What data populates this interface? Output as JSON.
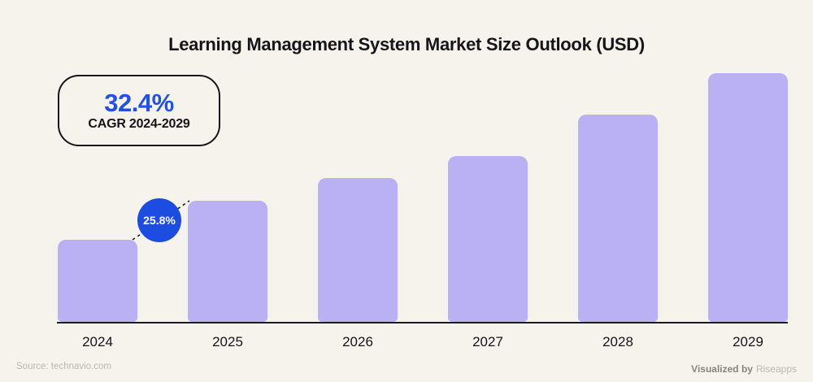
{
  "title": "Learning Management System Market Size Outlook (USD)",
  "cagr_box": {
    "value": "32.4%",
    "label": "CAGR 2024-2029"
  },
  "growth_badge": {
    "value": "25.8%"
  },
  "footer": {
    "source": "Source: technavio.com",
    "visualized_by": "Visualized by",
    "brand": "Riseapps"
  },
  "colors": {
    "background": "#f5f3ec",
    "bar_color": "#b9b1f4",
    "accent_blue": "#2050e8",
    "badge_blue": "#1d4de0",
    "axis_color": "#1a1a28",
    "title_color": "#15151a",
    "footer_dark": "#87847b",
    "footer_light": "#bcb8af"
  },
  "chart_data": {
    "type": "bar",
    "title": "Learning Management System Market Size Outlook (USD)",
    "categories": [
      "2024",
      "2025",
      "2026",
      "2027",
      "2028",
      "2029"
    ],
    "values": [
      33.0,
      48.7,
      57.8,
      66.7,
      83.3,
      100
    ],
    "xlabel": "",
    "ylabel": "",
    "y_axis_shown": false,
    "grid": false,
    "legend": false,
    "annotations": [
      {
        "text": "25.8%",
        "between": [
          "2024",
          "2025"
        ]
      },
      {
        "text": "32.4% CAGR 2024-2029",
        "position": "top-left"
      }
    ]
  }
}
